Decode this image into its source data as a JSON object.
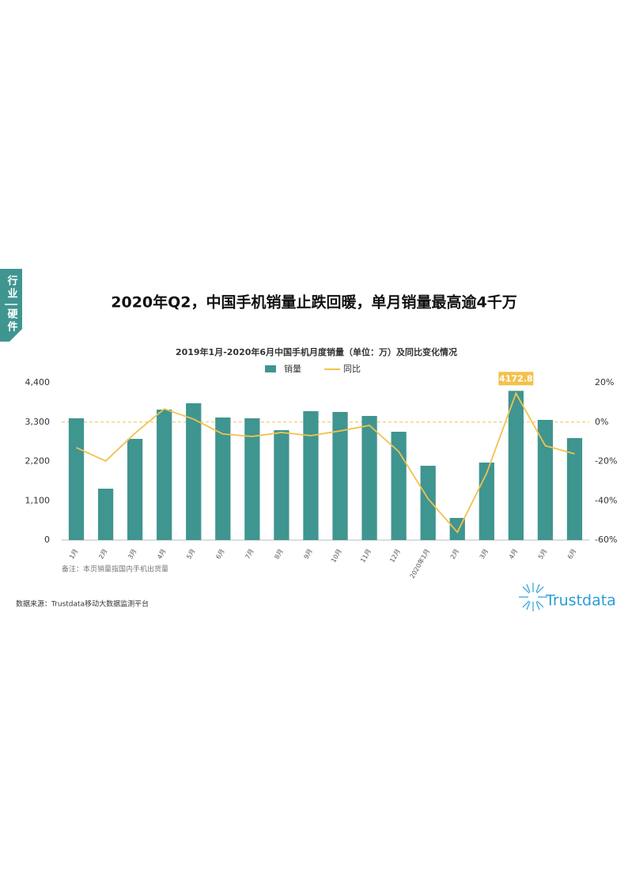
{
  "sidebar_tab": [
    "行业",
    "硬件"
  ],
  "heading": "2020年Q2，中国手机销量止跌回暖，单月销量最高逾4千万",
  "chart_data": {
    "type": "bar_line",
    "title": "2019年1月-2020年6月中国手机月度销量（单位：万）及同比变化情况",
    "categories": [
      "1月",
      "2月",
      "3月",
      "4月",
      "5月",
      "6月",
      "7月",
      "8月",
      "9月",
      "10月",
      "11月",
      "12月",
      "2020年1月",
      "2月",
      "3月",
      "4月",
      "5月",
      "6月"
    ],
    "series": [
      {
        "name": "销量",
        "type": "bar",
        "color": "#3f9590",
        "values": [
          3405,
          1437,
          2830,
          3648,
          3825,
          3427,
          3405,
          3073,
          3604,
          3582,
          3471,
          3029,
          2078,
          619,
          2167,
          4172.8,
          3361,
          2852
        ],
        "value_labels": [
          null,
          null,
          null,
          null,
          null,
          null,
          null,
          null,
          null,
          null,
          null,
          null,
          null,
          null,
          null,
          "4172.8",
          null,
          null
        ]
      },
      {
        "name": "同比",
        "type": "line",
        "color": "#f2c14e",
        "axis": "y2",
        "values": [
          -13,
          -19.8,
          -5.7,
          6.7,
          1.5,
          -6.1,
          -7.3,
          -5.3,
          -6.9,
          -4.5,
          -1.7,
          -15,
          -39,
          -56,
          -26,
          14.6,
          -12,
          -16.2
        ]
      }
    ],
    "ylim": [
      0,
      4400
    ],
    "yticks": [
      0,
      {
        "value": 1100,
        "label": "1,100"
      },
      {
        "value": 2200,
        "label": "2,200"
      },
      {
        "value": 3300,
        "label": "3,300"
      },
      {
        "value": 4400,
        "label": "4,400"
      }
    ],
    "y2lim": [
      -60,
      20
    ],
    "y2ticks": [
      {
        "value": -60,
        "label": "-60%"
      },
      {
        "value": -40,
        "label": "-40%"
      },
      {
        "value": -20,
        "label": "-20%"
      },
      {
        "value": 0,
        "label": "0%"
      },
      {
        "value": 20,
        "label": "20%"
      }
    ],
    "y2_reference_line": 0,
    "legend": "top"
  },
  "note": "备注：本页销量指国内手机出货量",
  "source": "数据来源：Trustdata移动大数据监测平台",
  "logo": "Trustdata"
}
